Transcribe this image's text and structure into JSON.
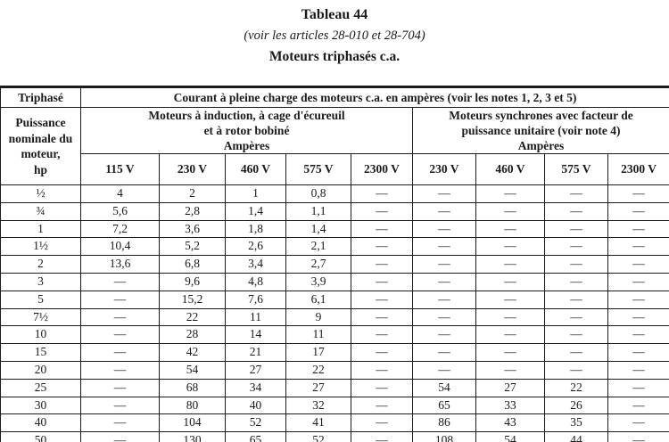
{
  "title": "Tableau 44",
  "subtitle": "(voir les articles 28-010 et 28-704)",
  "caption": "Moteurs triphasés c.a.",
  "colors": {
    "text": "#1b1b1b",
    "border": "#1b1b1b",
    "background": "#ffffff"
  },
  "table": {
    "corner_header": "Triphasé",
    "main_header": "Courant à pleine charge des moteurs c.a. en ampères (voir les notes 1, 2, 3 et 5)",
    "row_axis_header": "Puissance\nnominale du\nmoteur,\nhp",
    "group_induction": "Moteurs à induction, à cage d'écureuil\net à rotor bobiné\nAmpères",
    "group_synchronous": "Moteurs synchrones avec facteur de\npuissance unitaire (voir note 4)\nAmpères",
    "voltages": [
      "115 V",
      "230 V",
      "460 V",
      "575 V",
      "2300 V",
      "230 V",
      "460 V",
      "575 V",
      "2300 V"
    ],
    "rows": [
      {
        "hp": "½",
        "values": [
          "4",
          "2",
          "1",
          "0,8",
          "—",
          "—",
          "—",
          "—",
          "—"
        ]
      },
      {
        "hp": "¾",
        "values": [
          "5,6",
          "2,8",
          "1,4",
          "1,1",
          "—",
          "—",
          "—",
          "—",
          "—"
        ]
      },
      {
        "hp": "1",
        "values": [
          "7,2",
          "3,6",
          "1,8",
          "1,4",
          "—",
          "—",
          "—",
          "—",
          "—"
        ]
      },
      {
        "hp": "1½",
        "values": [
          "10,4",
          "5,2",
          "2,6",
          "2,1",
          "—",
          "—",
          "—",
          "—",
          "—"
        ]
      },
      {
        "hp": "2",
        "values": [
          "13,6",
          "6,8",
          "3,4",
          "2,7",
          "—",
          "—",
          "—",
          "—",
          "—"
        ]
      },
      {
        "hp": "3",
        "values": [
          "—",
          "9,6",
          "4,8",
          "3,9",
          "—",
          "—",
          "—",
          "—",
          "—"
        ]
      },
      {
        "hp": "5",
        "values": [
          "—",
          "15,2",
          "7,6",
          "6,1",
          "—",
          "—",
          "—",
          "—",
          "—"
        ]
      },
      {
        "hp": "7½",
        "values": [
          "—",
          "22",
          "11",
          "9",
          "—",
          "—",
          "—",
          "—",
          "—"
        ]
      },
      {
        "hp": "10",
        "values": [
          "—",
          "28",
          "14",
          "11",
          "—",
          "—",
          "—",
          "—",
          "—"
        ]
      },
      {
        "hp": "15",
        "values": [
          "—",
          "42",
          "21",
          "17",
          "—",
          "—",
          "—",
          "—",
          "—"
        ]
      },
      {
        "hp": "20",
        "values": [
          "—",
          "54",
          "27",
          "22",
          "—",
          "—",
          "—",
          "—",
          "—"
        ]
      },
      {
        "hp": "25",
        "values": [
          "—",
          "68",
          "34",
          "27",
          "—",
          "54",
          "27",
          "22",
          "—"
        ]
      },
      {
        "hp": "30",
        "values": [
          "—",
          "80",
          "40",
          "32",
          "—",
          "65",
          "33",
          "26",
          "—"
        ]
      },
      {
        "hp": "40",
        "values": [
          "—",
          "104",
          "52",
          "41",
          "—",
          "86",
          "43",
          "35",
          "—"
        ]
      },
      {
        "hp": "50",
        "values": [
          "—",
          "130",
          "65",
          "52",
          "—",
          "108",
          "54",
          "44",
          "—"
        ]
      }
    ]
  }
}
